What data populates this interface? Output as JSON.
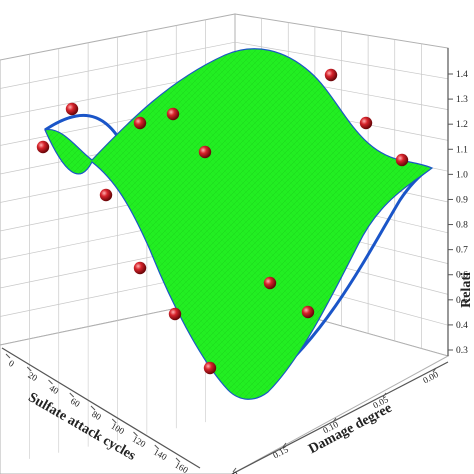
{
  "chart_data": {
    "type": "surface3d",
    "colors": {
      "surface": "#22ee22",
      "surface_edge": "#1a55c8",
      "grid": "#c8c8c8",
      "axis": "#555555",
      "marker": "#c0121a",
      "marker_highlight": "#ff9a9a"
    },
    "axes": {
      "x": {
        "label": "Sulfate attack cycles",
        "ticks": [
          "0",
          "20",
          "40",
          "60",
          "80",
          "100",
          "120",
          "140",
          "160"
        ]
      },
      "y": {
        "label": "Damage degree",
        "ticks": [
          "0.00",
          "0.05",
          "0.10",
          "0.15",
          "0.20"
        ]
      },
      "z": {
        "label": "Relati",
        "ticks": [
          "0.3",
          "0.4",
          "0.5",
          "0.6",
          "0.7",
          "0.8",
          "0.9",
          "1.0",
          "1.1",
          "1.2",
          "1.3",
          "1.4"
        ]
      }
    },
    "grid": true,
    "markers_count": 14
  }
}
